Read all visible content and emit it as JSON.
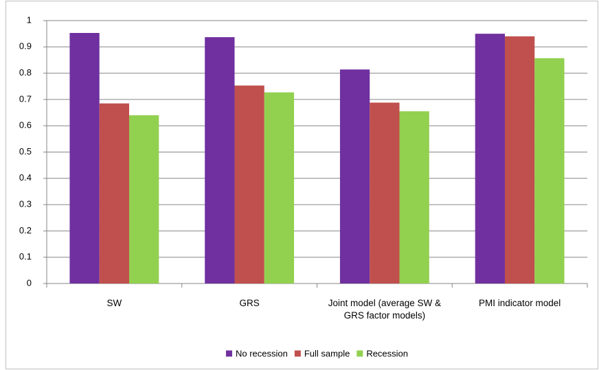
{
  "chart_data": {
    "type": "bar",
    "categories": [
      "SW",
      "GRS",
      "Joint model (average SW & GRS factor models)",
      "PMI indicator model"
    ],
    "series": [
      {
        "name": "No recession",
        "color": "#7030a0",
        "values": [
          0.953,
          0.937,
          0.814,
          0.95
        ]
      },
      {
        "name": "Full sample",
        "color": "#c0504d",
        "values": [
          0.685,
          0.753,
          0.688,
          0.94
        ]
      },
      {
        "name": "Recession",
        "color": "#92d050",
        "values": [
          0.64,
          0.727,
          0.655,
          0.857
        ]
      }
    ],
    "ylim": [
      0,
      1
    ],
    "yticks": [
      0,
      0.1,
      0.2,
      0.3,
      0.4,
      0.5,
      0.6,
      0.7,
      0.8,
      0.9,
      1
    ],
    "grid": true,
    "legend": "bottom"
  }
}
